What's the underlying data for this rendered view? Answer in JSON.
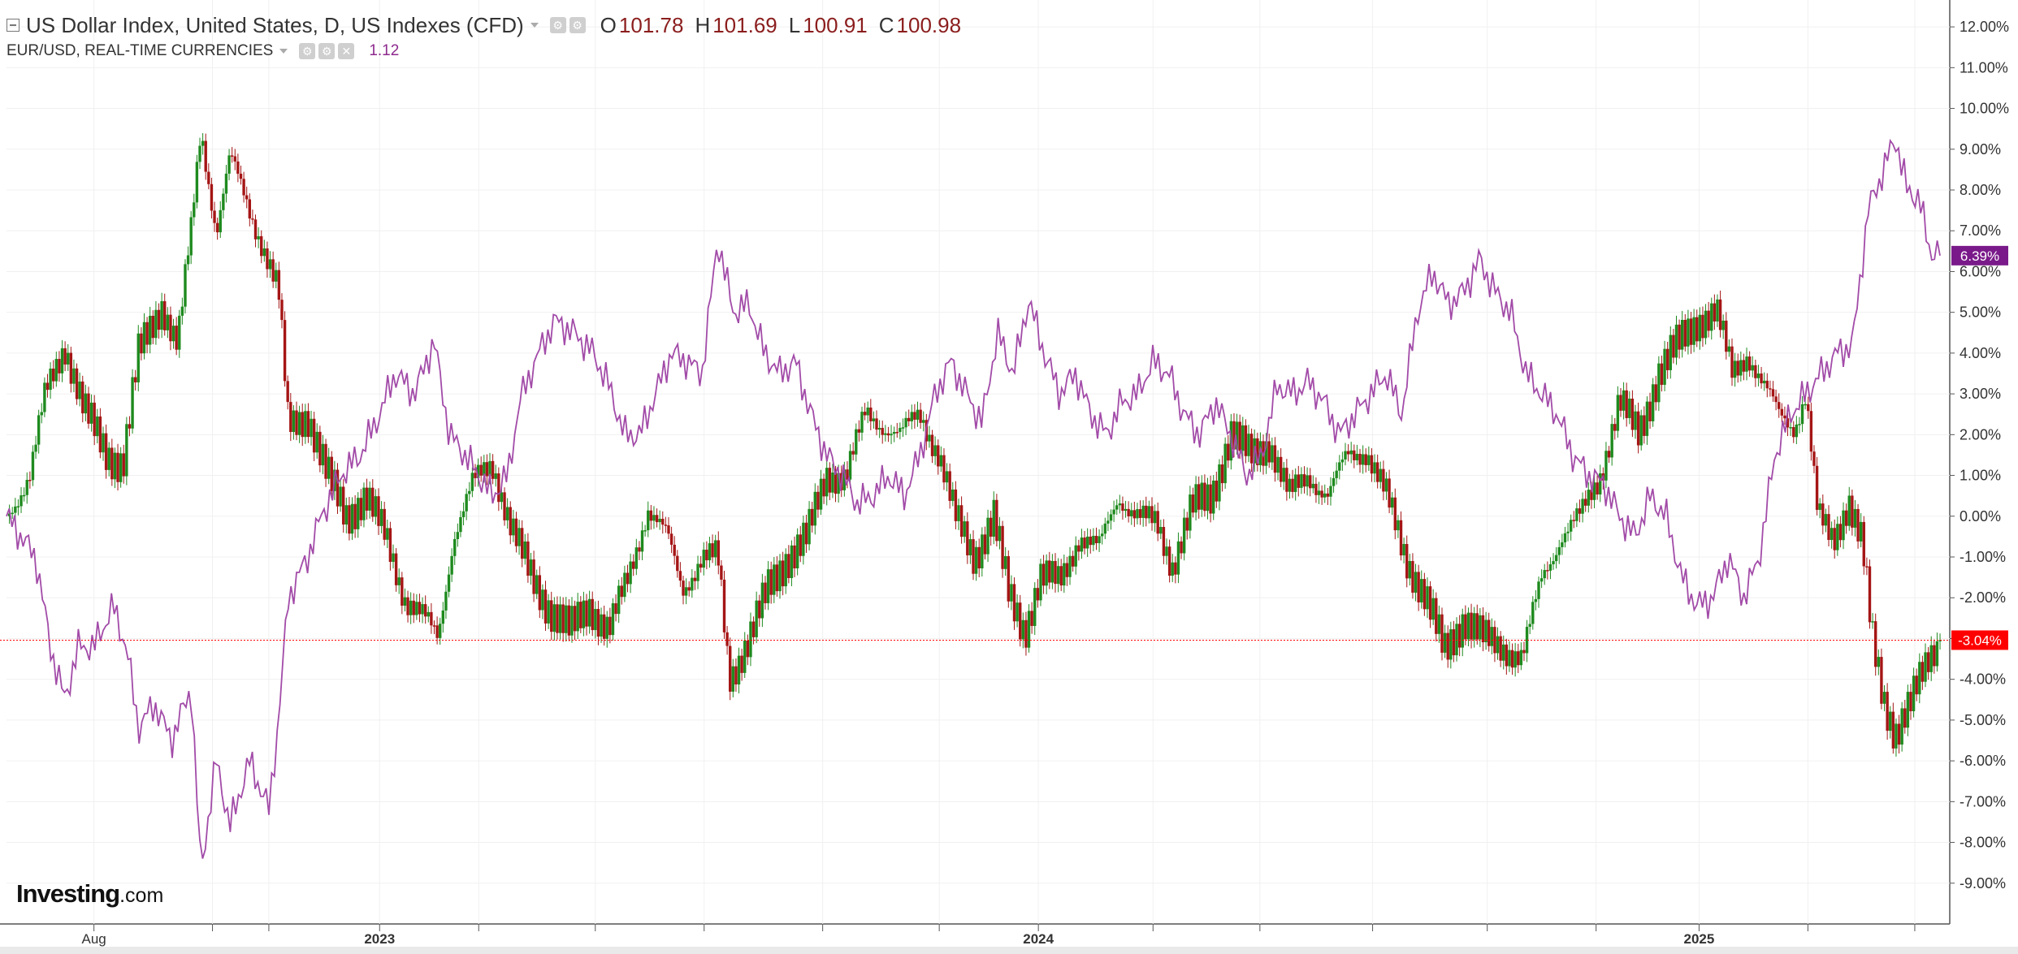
{
  "header": {
    "title": "US Dollar Index, United States, D, US Indexes (CFD)",
    "ohlc": [
      {
        "key": "O",
        "value": "101.78"
      },
      {
        "key": "H",
        "value": "101.69"
      },
      {
        "key": "L",
        "value": "100.91"
      },
      {
        "key": "C",
        "value": "100.98"
      }
    ],
    "overlay_title": "EUR/USD, REAL-TIME CURRENCIES",
    "overlay_value": "1.12"
  },
  "logo": {
    "brand": "Investing",
    "suffix": ".com"
  },
  "colors": {
    "up": "#1e8a1e",
    "down": "#a51515",
    "overlay": "#a24ba8",
    "last_badge_dxy": "#ff0000",
    "last_badge_eur": "#7a1a8a",
    "grid": "#f0f0f0"
  },
  "icons": {
    "collapse": "collapse-icon",
    "settings": "gear-icon",
    "close": "close-icon"
  },
  "chart_data": {
    "type": "line",
    "x_axis": {
      "tick_labels": [
        {
          "label": "Aug",
          "t": 0.045
        },
        {
          "label": "2023",
          "t": 0.192,
          "bold": true
        },
        {
          "label": "2024",
          "t": 0.531,
          "bold": true
        },
        {
          "label": "2025",
          "t": 0.871,
          "bold": true
        }
      ],
      "minor_ticks": [
        0.106,
        0.135,
        0.243,
        0.303,
        0.359,
        0.42,
        0.48,
        0.59,
        0.645,
        0.703,
        0.762,
        0.818,
        0.927,
        0.982
      ]
    },
    "y_axis": {
      "unit": "%",
      "range": [
        -10.0,
        12.5
      ],
      "tick_labels": [
        "12.00%",
        "11.00%",
        "10.00%",
        "9.00%",
        "8.00%",
        "7.00%",
        "6.00%",
        "5.00%",
        "4.00%",
        "3.00%",
        "2.00%",
        "1.00%",
        "0.00%",
        "-1.00%",
        "-2.00%",
        "-3.00%",
        "-4.00%",
        "-5.00%",
        "-6.00%",
        "-7.00%",
        "-8.00%",
        "-9.00%"
      ],
      "tick_values": [
        12,
        11,
        10,
        9,
        8,
        7,
        6,
        5,
        4,
        3,
        2,
        1,
        0,
        -1,
        -2,
        -3,
        -4,
        -5,
        -6,
        -7,
        -8,
        -9
      ]
    },
    "grid": true,
    "series": [
      {
        "name": "US Dollar Index",
        "render": "candlestick",
        "last_label": "-3.04%",
        "last_value": -3.04,
        "points": [
          {
            "t": 0.0,
            "v": 0.0
          },
          {
            "t": 0.012,
            "v": 1.0
          },
          {
            "t": 0.02,
            "v": 3.0
          },
          {
            "t": 0.03,
            "v": 4.2
          },
          {
            "t": 0.04,
            "v": 2.6
          },
          {
            "t": 0.052,
            "v": 1.5
          },
          {
            "t": 0.06,
            "v": 1.3
          },
          {
            "t": 0.068,
            "v": 4.0
          },
          {
            "t": 0.08,
            "v": 5.2
          },
          {
            "t": 0.088,
            "v": 4.2
          },
          {
            "t": 0.095,
            "v": 7.0
          },
          {
            "t": 0.1,
            "v": 9.5
          },
          {
            "t": 0.108,
            "v": 7.0
          },
          {
            "t": 0.115,
            "v": 8.8
          },
          {
            "t": 0.125,
            "v": 7.5
          },
          {
            "t": 0.133,
            "v": 6.5
          },
          {
            "t": 0.14,
            "v": 5.5
          },
          {
            "t": 0.145,
            "v": 2.2
          },
          {
            "t": 0.155,
            "v": 2.5
          },
          {
            "t": 0.165,
            "v": 1.0
          },
          {
            "t": 0.175,
            "v": 0.0
          },
          {
            "t": 0.185,
            "v": 0.5
          },
          {
            "t": 0.195,
            "v": -0.5
          },
          {
            "t": 0.205,
            "v": -2.0
          },
          {
            "t": 0.215,
            "v": -2.5
          },
          {
            "t": 0.222,
            "v": -3.0
          },
          {
            "t": 0.23,
            "v": -0.5
          },
          {
            "t": 0.24,
            "v": 0.8
          },
          {
            "t": 0.25,
            "v": 1.3
          },
          {
            "t": 0.26,
            "v": -0.3
          },
          {
            "t": 0.27,
            "v": -1.5
          },
          {
            "t": 0.28,
            "v": -2.3
          },
          {
            "t": 0.29,
            "v": -2.8
          },
          {
            "t": 0.3,
            "v": -2.2
          },
          {
            "t": 0.31,
            "v": -2.8
          },
          {
            "t": 0.32,
            "v": -1.5
          },
          {
            "t": 0.33,
            "v": 0.2
          },
          {
            "t": 0.34,
            "v": -0.5
          },
          {
            "t": 0.348,
            "v": -1.8
          },
          {
            "t": 0.358,
            "v": -1.0
          },
          {
            "t": 0.366,
            "v": -1.0
          },
          {
            "t": 0.372,
            "v": -4.0
          },
          {
            "t": 0.382,
            "v": -3.0
          },
          {
            "t": 0.392,
            "v": -1.8
          },
          {
            "t": 0.402,
            "v": -1.0
          },
          {
            "t": 0.412,
            "v": -0.5
          },
          {
            "t": 0.422,
            "v": 1.0
          },
          {
            "t": 0.432,
            "v": 1.0
          },
          {
            "t": 0.442,
            "v": 2.5
          },
          {
            "t": 0.452,
            "v": 2.2
          },
          {
            "t": 0.46,
            "v": 2.0
          },
          {
            "t": 0.47,
            "v": 2.5
          },
          {
            "t": 0.48,
            "v": 1.5
          },
          {
            "t": 0.488,
            "v": 0.0
          },
          {
            "t": 0.498,
            "v": -1.0
          },
          {
            "t": 0.508,
            "v": 0.0
          },
          {
            "t": 0.516,
            "v": -2.0
          },
          {
            "t": 0.524,
            "v": -2.8
          },
          {
            "t": 0.532,
            "v": -1.5
          },
          {
            "t": 0.542,
            "v": -1.6
          },
          {
            "t": 0.552,
            "v": -0.5
          },
          {
            "t": 0.562,
            "v": -0.8
          },
          {
            "t": 0.572,
            "v": 0.5
          },
          {
            "t": 0.582,
            "v": 0.0
          },
          {
            "t": 0.592,
            "v": -0.2
          },
          {
            "t": 0.6,
            "v": -1.2
          },
          {
            "t": 0.61,
            "v": 0.2
          },
          {
            "t": 0.62,
            "v": 0.5
          },
          {
            "t": 0.63,
            "v": 2.0
          },
          {
            "t": 0.64,
            "v": 1.5
          },
          {
            "t": 0.65,
            "v": 1.8
          },
          {
            "t": 0.66,
            "v": 0.5
          },
          {
            "t": 0.67,
            "v": 1.0
          },
          {
            "t": 0.68,
            "v": 0.5
          },
          {
            "t": 0.69,
            "v": 1.5
          },
          {
            "t": 0.7,
            "v": 1.6
          },
          {
            "t": 0.71,
            "v": 0.5
          },
          {
            "t": 0.72,
            "v": -1.0
          },
          {
            "t": 0.73,
            "v": -2.0
          },
          {
            "t": 0.74,
            "v": -3.3
          },
          {
            "t": 0.75,
            "v": -2.5
          },
          {
            "t": 0.76,
            "v": -3.0
          },
          {
            "t": 0.77,
            "v": -3.2
          },
          {
            "t": 0.78,
            "v": -3.5
          },
          {
            "t": 0.79,
            "v": -1.5
          },
          {
            "t": 0.8,
            "v": -0.5
          },
          {
            "t": 0.81,
            "v": 0.0
          },
          {
            "t": 0.82,
            "v": 1.0
          },
          {
            "t": 0.83,
            "v": 2.8
          },
          {
            "t": 0.84,
            "v": 2.0
          },
          {
            "t": 0.85,
            "v": 3.5
          },
          {
            "t": 0.86,
            "v": 4.2
          },
          {
            "t": 0.87,
            "v": 4.8
          },
          {
            "t": 0.88,
            "v": 5.0
          },
          {
            "t": 0.888,
            "v": 3.5
          },
          {
            "t": 0.896,
            "v": 4.0
          },
          {
            "t": 0.904,
            "v": 3.2
          },
          {
            "t": 0.912,
            "v": 2.5
          },
          {
            "t": 0.92,
            "v": 2.2
          },
          {
            "t": 0.926,
            "v": 3.0
          },
          {
            "t": 0.932,
            "v": 0.0
          },
          {
            "t": 0.94,
            "v": -0.6
          },
          {
            "t": 0.948,
            "v": 0.4
          },
          {
            "t": 0.955,
            "v": -0.7
          },
          {
            "t": 0.96,
            "v": -3.0
          },
          {
            "t": 0.966,
            "v": -4.5
          },
          {
            "t": 0.972,
            "v": -5.3
          },
          {
            "t": 0.98,
            "v": -4.6
          },
          {
            "t": 0.985,
            "v": -4.0
          },
          {
            "t": 0.99,
            "v": -3.4
          },
          {
            "t": 0.995,
            "v": -3.04
          }
        ]
      },
      {
        "name": "EUR/USD",
        "render": "line",
        "last_label": "6.39%",
        "last_value": 6.39,
        "points": [
          {
            "t": 0.0,
            "v": 0.0
          },
          {
            "t": 0.015,
            "v": -1.0
          },
          {
            "t": 0.023,
            "v": -3.3
          },
          {
            "t": 0.03,
            "v": -4.5
          },
          {
            "t": 0.037,
            "v": -3.2
          },
          {
            "t": 0.045,
            "v": -3.2
          },
          {
            "t": 0.055,
            "v": -2.2
          },
          {
            "t": 0.062,
            "v": -3.3
          },
          {
            "t": 0.068,
            "v": -5.2
          },
          {
            "t": 0.076,
            "v": -4.6
          },
          {
            "t": 0.085,
            "v": -5.5
          },
          {
            "t": 0.095,
            "v": -4.2
          },
          {
            "t": 0.1,
            "v": -8.7
          },
          {
            "t": 0.108,
            "v": -6.0
          },
          {
            "t": 0.115,
            "v": -7.6
          },
          {
            "t": 0.125,
            "v": -6.0
          },
          {
            "t": 0.135,
            "v": -7.2
          },
          {
            "t": 0.14,
            "v": -5.0
          },
          {
            "t": 0.145,
            "v": -2.0
          },
          {
            "t": 0.155,
            "v": -1.0
          },
          {
            "t": 0.162,
            "v": 0.0
          },
          {
            "t": 0.172,
            "v": 1.0
          },
          {
            "t": 0.182,
            "v": 1.5
          },
          {
            "t": 0.192,
            "v": 2.5
          },
          {
            "t": 0.2,
            "v": 3.5
          },
          {
            "t": 0.21,
            "v": 3.0
          },
          {
            "t": 0.22,
            "v": 4.3
          },
          {
            "t": 0.228,
            "v": 2.0
          },
          {
            "t": 0.236,
            "v": 1.5
          },
          {
            "t": 0.243,
            "v": 1.0
          },
          {
            "t": 0.25,
            "v": 0.5
          },
          {
            "t": 0.258,
            "v": 1.0
          },
          {
            "t": 0.264,
            "v": 2.8
          },
          {
            "t": 0.272,
            "v": 3.8
          },
          {
            "t": 0.282,
            "v": 4.8
          },
          {
            "t": 0.292,
            "v": 4.5
          },
          {
            "t": 0.302,
            "v": 4.0
          },
          {
            "t": 0.31,
            "v": 3.2
          },
          {
            "t": 0.318,
            "v": 2.0
          },
          {
            "t": 0.326,
            "v": 2.0
          },
          {
            "t": 0.334,
            "v": 3.0
          },
          {
            "t": 0.342,
            "v": 4.0
          },
          {
            "t": 0.35,
            "v": 3.8
          },
          {
            "t": 0.358,
            "v": 3.5
          },
          {
            "t": 0.366,
            "v": 6.8
          },
          {
            "t": 0.374,
            "v": 5.0
          },
          {
            "t": 0.382,
            "v": 5.2
          },
          {
            "t": 0.39,
            "v": 4.0
          },
          {
            "t": 0.398,
            "v": 3.5
          },
          {
            "t": 0.406,
            "v": 3.8
          },
          {
            "t": 0.414,
            "v": 2.5
          },
          {
            "t": 0.422,
            "v": 1.5
          },
          {
            "t": 0.43,
            "v": 1.0
          },
          {
            "t": 0.438,
            "v": 0.3
          },
          {
            "t": 0.446,
            "v": 0.5
          },
          {
            "t": 0.454,
            "v": 1.0
          },
          {
            "t": 0.462,
            "v": 0.5
          },
          {
            "t": 0.47,
            "v": 1.5
          },
          {
            "t": 0.478,
            "v": 3.0
          },
          {
            "t": 0.486,
            "v": 3.8
          },
          {
            "t": 0.494,
            "v": 3.0
          },
          {
            "t": 0.502,
            "v": 2.3
          },
          {
            "t": 0.51,
            "v": 4.5
          },
          {
            "t": 0.518,
            "v": 3.5
          },
          {
            "t": 0.526,
            "v": 5.3
          },
          {
            "t": 0.534,
            "v": 4.0
          },
          {
            "t": 0.542,
            "v": 3.0
          },
          {
            "t": 0.55,
            "v": 3.5
          },
          {
            "t": 0.558,
            "v": 2.5
          },
          {
            "t": 0.566,
            "v": 2.0
          },
          {
            "t": 0.574,
            "v": 2.8
          },
          {
            "t": 0.582,
            "v": 3.0
          },
          {
            "t": 0.59,
            "v": 3.8
          },
          {
            "t": 0.598,
            "v": 3.5
          },
          {
            "t": 0.606,
            "v": 2.5
          },
          {
            "t": 0.614,
            "v": 2.0
          },
          {
            "t": 0.622,
            "v": 2.8
          },
          {
            "t": 0.63,
            "v": 2.0
          },
          {
            "t": 0.638,
            "v": 1.0
          },
          {
            "t": 0.646,
            "v": 1.5
          },
          {
            "t": 0.654,
            "v": 3.2
          },
          {
            "t": 0.662,
            "v": 3.0
          },
          {
            "t": 0.67,
            "v": 3.3
          },
          {
            "t": 0.678,
            "v": 2.8
          },
          {
            "t": 0.686,
            "v": 2.0
          },
          {
            "t": 0.694,
            "v": 2.5
          },
          {
            "t": 0.702,
            "v": 3.0
          },
          {
            "t": 0.71,
            "v": 3.5
          },
          {
            "t": 0.718,
            "v": 2.5
          },
          {
            "t": 0.726,
            "v": 5.0
          },
          {
            "t": 0.734,
            "v": 6.0
          },
          {
            "t": 0.742,
            "v": 5.2
          },
          {
            "t": 0.75,
            "v": 5.5
          },
          {
            "t": 0.758,
            "v": 6.3
          },
          {
            "t": 0.766,
            "v": 5.5
          },
          {
            "t": 0.774,
            "v": 5.0
          },
          {
            "t": 0.782,
            "v": 3.5
          },
          {
            "t": 0.79,
            "v": 3.0
          },
          {
            "t": 0.798,
            "v": 2.5
          },
          {
            "t": 0.806,
            "v": 1.5
          },
          {
            "t": 0.814,
            "v": 1.0
          },
          {
            "t": 0.822,
            "v": 0.8
          },
          {
            "t": 0.83,
            "v": 0.0
          },
          {
            "t": 0.838,
            "v": -0.5
          },
          {
            "t": 0.846,
            "v": 0.5
          },
          {
            "t": 0.854,
            "v": 0.0
          },
          {
            "t": 0.862,
            "v": -1.5
          },
          {
            "t": 0.87,
            "v": -2.2
          },
          {
            "t": 0.878,
            "v": -2.0
          },
          {
            "t": 0.886,
            "v": -1.0
          },
          {
            "t": 0.894,
            "v": -2.0
          },
          {
            "t": 0.902,
            "v": -1.0
          },
          {
            "t": 0.91,
            "v": 1.5
          },
          {
            "t": 0.918,
            "v": 2.5
          },
          {
            "t": 0.926,
            "v": 3.0
          },
          {
            "t": 0.934,
            "v": 3.5
          },
          {
            "t": 0.942,
            "v": 4.0
          },
          {
            "t": 0.95,
            "v": 4.2
          },
          {
            "t": 0.958,
            "v": 7.5
          },
          {
            "t": 0.966,
            "v": 8.5
          },
          {
            "t": 0.972,
            "v": 9.3
          },
          {
            "t": 0.978,
            "v": 8.0
          },
          {
            "t": 0.984,
            "v": 7.8
          },
          {
            "t": 0.99,
            "v": 6.5
          },
          {
            "t": 0.995,
            "v": 6.39
          }
        ]
      }
    ]
  }
}
